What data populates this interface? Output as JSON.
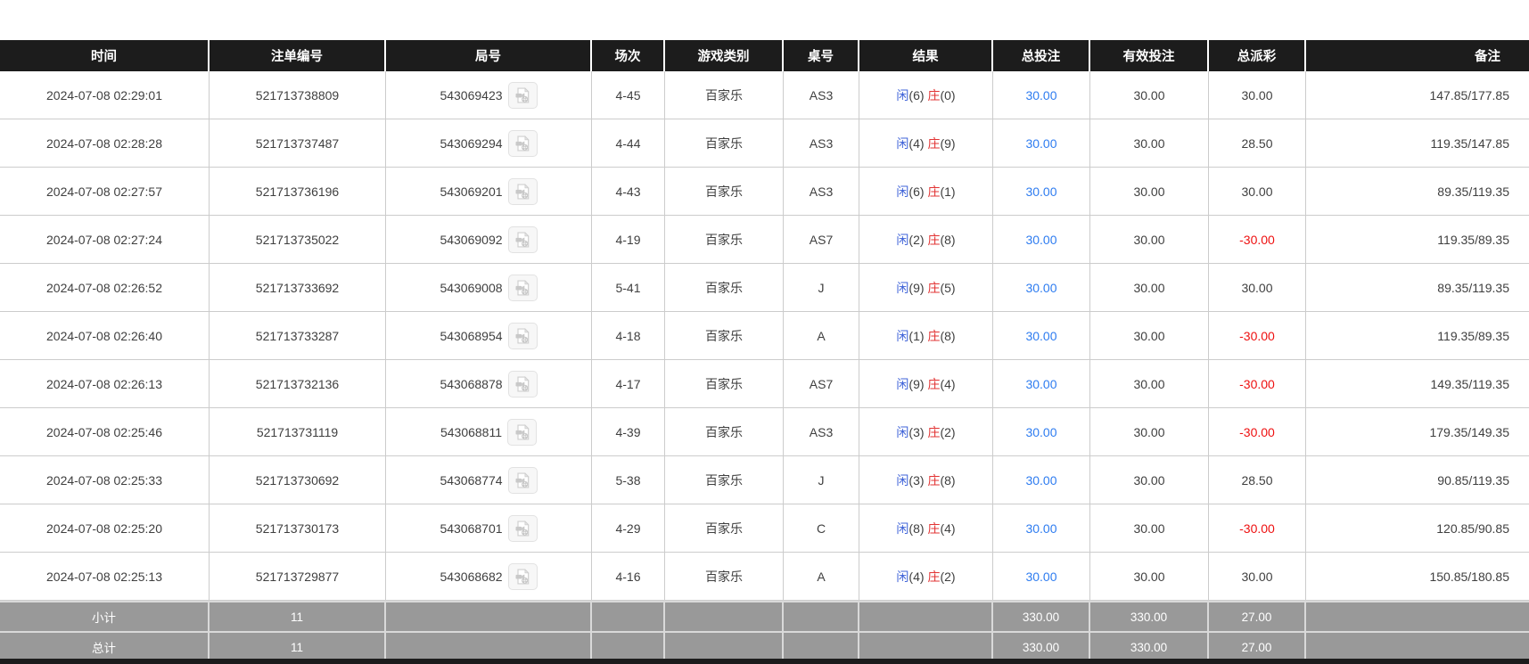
{
  "colors": {
    "header_bg": "#1c1c1c",
    "footer_bg": "#999999",
    "player_blue": "#3f63d8",
    "banker_red": "#e23333",
    "bet_blue": "#2e7cf0",
    "negative_red": "#ee1010"
  },
  "icons": {
    "video_replay": "video-replay-icon"
  },
  "table": {
    "headers": [
      "时间",
      "注单编号",
      "局号",
      "场次",
      "游戏类别",
      "桌号",
      "结果",
      "总投注",
      "有效投注",
      "总派彩",
      "备注"
    ],
    "rows": [
      {
        "time": "2024-07-08 02:29:01",
        "bet_id": "521713738809",
        "round_id": "543069423",
        "session": "4-45",
        "game_type": "百家乐",
        "table_no": "AS3",
        "result": {
          "player": "闲",
          "player_pts": "(6)",
          "banker": "庄",
          "banker_pts": "(0)"
        },
        "total_bet": "30.00",
        "valid_bet": "30.00",
        "payout": "30.00",
        "payout_negative": false,
        "remark": "147.85/177.85"
      },
      {
        "time": "2024-07-08 02:28:28",
        "bet_id": "521713737487",
        "round_id": "543069294",
        "session": "4-44",
        "game_type": "百家乐",
        "table_no": "AS3",
        "result": {
          "player": "闲",
          "player_pts": "(4)",
          "banker": "庄",
          "banker_pts": "(9)"
        },
        "total_bet": "30.00",
        "valid_bet": "30.00",
        "payout": "28.50",
        "payout_negative": false,
        "remark": "119.35/147.85"
      },
      {
        "time": "2024-07-08 02:27:57",
        "bet_id": "521713736196",
        "round_id": "543069201",
        "session": "4-43",
        "game_type": "百家乐",
        "table_no": "AS3",
        "result": {
          "player": "闲",
          "player_pts": "(6)",
          "banker": "庄",
          "banker_pts": "(1)"
        },
        "total_bet": "30.00",
        "valid_bet": "30.00",
        "payout": "30.00",
        "payout_negative": false,
        "remark": "89.35/119.35"
      },
      {
        "time": "2024-07-08 02:27:24",
        "bet_id": "521713735022",
        "round_id": "543069092",
        "session": "4-19",
        "game_type": "百家乐",
        "table_no": "AS7",
        "result": {
          "player": "闲",
          "player_pts": "(2)",
          "banker": "庄",
          "banker_pts": "(8)"
        },
        "total_bet": "30.00",
        "valid_bet": "30.00",
        "payout": "-30.00",
        "payout_negative": true,
        "remark": "119.35/89.35"
      },
      {
        "time": "2024-07-08 02:26:52",
        "bet_id": "521713733692",
        "round_id": "543069008",
        "session": "5-41",
        "game_type": "百家乐",
        "table_no": "J",
        "result": {
          "player": "闲",
          "player_pts": "(9)",
          "banker": "庄",
          "banker_pts": "(5)"
        },
        "total_bet": "30.00",
        "valid_bet": "30.00",
        "payout": "30.00",
        "payout_negative": false,
        "remark": "89.35/119.35"
      },
      {
        "time": "2024-07-08 02:26:40",
        "bet_id": "521713733287",
        "round_id": "543068954",
        "session": "4-18",
        "game_type": "百家乐",
        "table_no": "A",
        "result": {
          "player": "闲",
          "player_pts": "(1)",
          "banker": "庄",
          "banker_pts": "(8)"
        },
        "total_bet": "30.00",
        "valid_bet": "30.00",
        "payout": "-30.00",
        "payout_negative": true,
        "remark": "119.35/89.35"
      },
      {
        "time": "2024-07-08 02:26:13",
        "bet_id": "521713732136",
        "round_id": "543068878",
        "session": "4-17",
        "game_type": "百家乐",
        "table_no": "AS7",
        "result": {
          "player": "闲",
          "player_pts": "(9)",
          "banker": "庄",
          "banker_pts": "(4)"
        },
        "total_bet": "30.00",
        "valid_bet": "30.00",
        "payout": "-30.00",
        "payout_negative": true,
        "remark": "149.35/119.35"
      },
      {
        "time": "2024-07-08 02:25:46",
        "bet_id": "521713731119",
        "round_id": "543068811",
        "session": "4-39",
        "game_type": "百家乐",
        "table_no": "AS3",
        "result": {
          "player": "闲",
          "player_pts": "(3)",
          "banker": "庄",
          "banker_pts": "(2)"
        },
        "total_bet": "30.00",
        "valid_bet": "30.00",
        "payout": "-30.00",
        "payout_negative": true,
        "remark": "179.35/149.35"
      },
      {
        "time": "2024-07-08 02:25:33",
        "bet_id": "521713730692",
        "round_id": "543068774",
        "session": "5-38",
        "game_type": "百家乐",
        "table_no": "J",
        "result": {
          "player": "闲",
          "player_pts": "(3)",
          "banker": "庄",
          "banker_pts": "(8)"
        },
        "total_bet": "30.00",
        "valid_bet": "30.00",
        "payout": "28.50",
        "payout_negative": false,
        "remark": "90.85/119.35"
      },
      {
        "time": "2024-07-08 02:25:20",
        "bet_id": "521713730173",
        "round_id": "543068701",
        "session": "4-29",
        "game_type": "百家乐",
        "table_no": "C",
        "result": {
          "player": "闲",
          "player_pts": "(8)",
          "banker": "庄",
          "banker_pts": "(4)"
        },
        "total_bet": "30.00",
        "valid_bet": "30.00",
        "payout": "-30.00",
        "payout_negative": true,
        "remark": "120.85/90.85"
      },
      {
        "time": "2024-07-08 02:25:13",
        "bet_id": "521713729877",
        "round_id": "543068682",
        "session": "4-16",
        "game_type": "百家乐",
        "table_no": "A",
        "result": {
          "player": "闲",
          "player_pts": "(4)",
          "banker": "庄",
          "banker_pts": "(2)"
        },
        "total_bet": "30.00",
        "valid_bet": "30.00",
        "payout": "30.00",
        "payout_negative": false,
        "remark": "150.85/180.85"
      }
    ],
    "footer": [
      {
        "label": "小计",
        "count": "11",
        "total_bet": "330.00",
        "valid_bet": "330.00",
        "payout": "27.00"
      },
      {
        "label": "总计",
        "count": "11",
        "total_bet": "330.00",
        "valid_bet": "330.00",
        "payout": "27.00"
      }
    ]
  }
}
